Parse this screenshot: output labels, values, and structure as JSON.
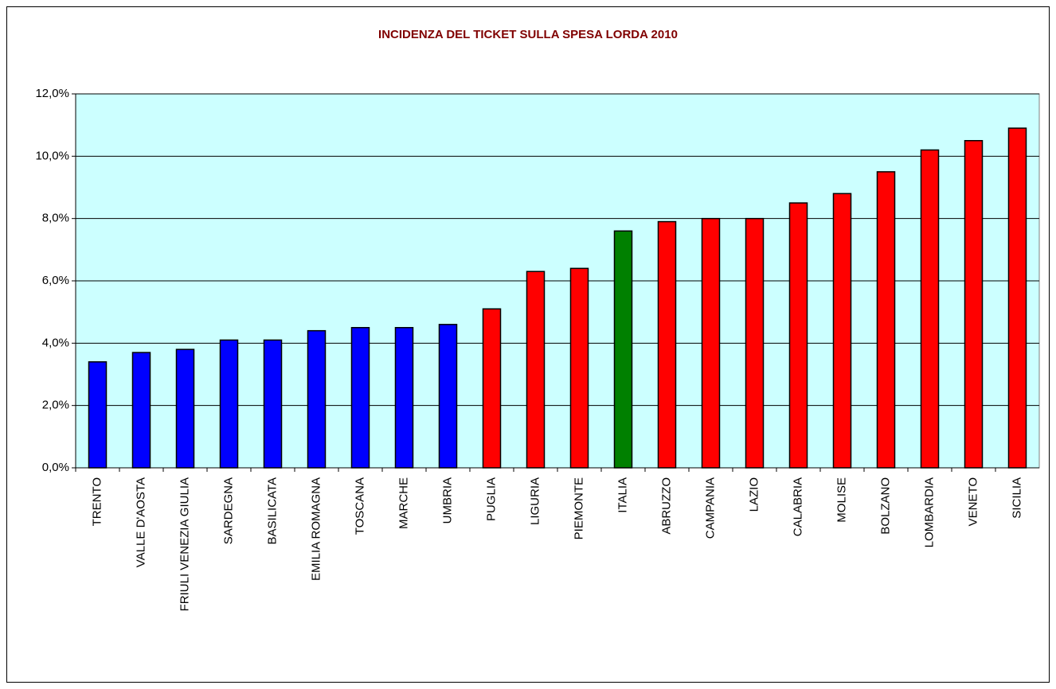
{
  "chart_data": {
    "type": "bar",
    "title": "INCIDENZA DEL TICKET SULLA SPESA LORDA 2010",
    "categories": [
      "TRENTO",
      "VALLE D'AOSTA",
      "FRIULI VENEZIA GIULIA",
      "SARDEGNA",
      "BASILICATA",
      "EMILIA ROMAGNA",
      "TOSCANA",
      "MARCHE",
      "UMBRIA",
      "PUGLIA",
      "LIGURIA",
      "PIEMONTE",
      "ITALIA",
      "ABRUZZO",
      "CAMPANIA",
      "LAZIO",
      "CALABRIA",
      "MOLISE",
      "BOLZANO",
      "LOMBARDIA",
      "VENETO",
      "SICILIA"
    ],
    "values": [
      3.4,
      3.7,
      3.8,
      4.1,
      4.1,
      4.4,
      4.5,
      4.5,
      4.6,
      5.1,
      6.3,
      6.4,
      7.6,
      7.9,
      8.0,
      8.0,
      8.5,
      8.8,
      9.5,
      10.2,
      10.5,
      10.9
    ],
    "colors": [
      "#0000ff",
      "#0000ff",
      "#0000ff",
      "#0000ff",
      "#0000ff",
      "#0000ff",
      "#0000ff",
      "#0000ff",
      "#0000ff",
      "#ff0000",
      "#ff0000",
      "#ff0000",
      "#008000",
      "#ff0000",
      "#ff0000",
      "#ff0000",
      "#ff0000",
      "#ff0000",
      "#ff0000",
      "#ff0000",
      "#ff0000",
      "#ff0000"
    ],
    "ylim": [
      0,
      12
    ],
    "yticks": [
      {
        "value": 0,
        "label": "0,0%"
      },
      {
        "value": 2,
        "label": "2,0%"
      },
      {
        "value": 4,
        "label": "4,0%"
      },
      {
        "value": 6,
        "label": "6,0%"
      },
      {
        "value": 8,
        "label": "8,0%"
      },
      {
        "value": 10,
        "label": "10,0%"
      },
      {
        "value": 12,
        "label": "12,0%"
      }
    ],
    "grid": true
  }
}
